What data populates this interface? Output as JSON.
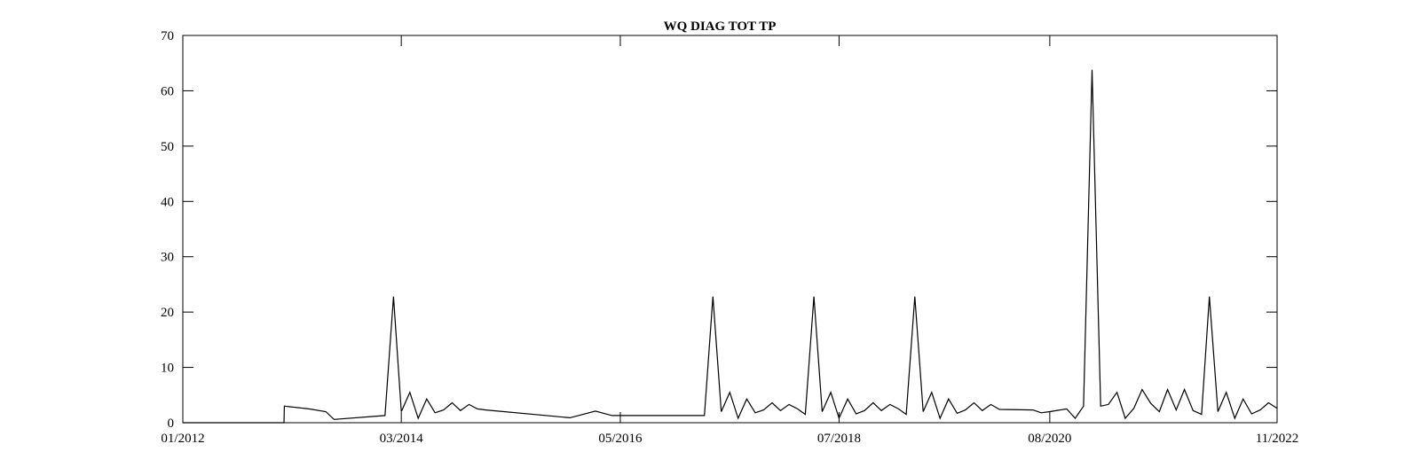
{
  "chart_data": {
    "type": "line",
    "title": "WQ DIAG TOT TP",
    "xlabel": "",
    "ylabel": "",
    "x_axis": {
      "type": "date",
      "range": [
        "2012-01-01",
        "2022-11-01"
      ],
      "ticks": [
        {
          "date": "2012-01-01",
          "label": "01/2012"
        },
        {
          "date": "2014-03-01",
          "label": "03/2014"
        },
        {
          "date": "2016-05-01",
          "label": "05/2016"
        },
        {
          "date": "2018-07-01",
          "label": "07/2018"
        },
        {
          "date": "2020-08-01",
          "label": "08/2020"
        },
        {
          "date": "2022-11-01",
          "label": "11/2022"
        }
      ]
    },
    "y_axis": {
      "range": [
        0,
        70
      ],
      "ticks": [
        0,
        10,
        20,
        30,
        40,
        50,
        60,
        70
      ]
    },
    "grid": false,
    "legend": "none",
    "line_color": "#000000",
    "series": [
      {
        "x": [
          "2012-01-01",
          "2013-01-01",
          "2013-01-02",
          "2013-04-01",
          "2013-06-01",
          "2013-07-01",
          "2014-01-01",
          "2014-02-01",
          "2014-03-01",
          "2014-04-01",
          "2014-05-01",
          "2014-06-01",
          "2014-07-01",
          "2014-08-01",
          "2014-09-01",
          "2014-10-01",
          "2014-11-01",
          "2014-12-01",
          "2015-01-01",
          "2015-11-01",
          "2016-02-01",
          "2016-04-01",
          "2017-03-01",
          "2017-04-01",
          "2017-05-01",
          "2017-06-01",
          "2017-07-01",
          "2017-08-01",
          "2017-09-01",
          "2017-10-01",
          "2017-11-01",
          "2017-12-01",
          "2018-01-01",
          "2018-02-01",
          "2018-03-01",
          "2018-04-01",
          "2018-05-01",
          "2018-06-01",
          "2018-07-01",
          "2018-08-01",
          "2018-09-01",
          "2018-10-01",
          "2018-11-01",
          "2018-12-01",
          "2019-01-01",
          "2019-02-01",
          "2019-03-01",
          "2019-04-01",
          "2019-05-01",
          "2019-06-01",
          "2019-07-01",
          "2019-08-01",
          "2019-09-01",
          "2019-10-01",
          "2019-11-01",
          "2019-12-01",
          "2020-01-01",
          "2020-02-01",
          "2020-06-01",
          "2020-07-01",
          "2020-08-01",
          "2020-10-01",
          "2020-11-01",
          "2020-12-01",
          "2021-01-01",
          "2021-02-01",
          "2021-03-01",
          "2021-04-01",
          "2021-05-01",
          "2021-06-01",
          "2021-07-01",
          "2021-08-01",
          "2021-09-01",
          "2021-10-01",
          "2021-11-01",
          "2021-12-01",
          "2022-01-01",
          "2022-02-01",
          "2022-03-01",
          "2022-04-01",
          "2022-05-01",
          "2022-06-01",
          "2022-07-01",
          "2022-08-01",
          "2022-09-01",
          "2022-10-01",
          "2022-11-01"
        ],
        "y": [
          0,
          0,
          3,
          2.5,
          2,
          0.6,
          1.3,
          22.8,
          2,
          5.5,
          0.8,
          4.3,
          1.8,
          2.3,
          3.6,
          2.2,
          3.3,
          2.5,
          2.3,
          0.9,
          2.1,
          1.3,
          1.3,
          22.8,
          2,
          5.5,
          0.8,
          4.3,
          1.8,
          2.3,
          3.6,
          2.2,
          3.3,
          2.5,
          1.5,
          22.8,
          2,
          5.5,
          0.8,
          4.3,
          1.6,
          2.2,
          3.6,
          2.2,
          3.3,
          2.5,
          1.5,
          22.8,
          2,
          5.5,
          0.8,
          4.3,
          1.7,
          2.3,
          3.6,
          2.2,
          3.3,
          2.4,
          2.3,
          1.8,
          2,
          2.5,
          0.8,
          3,
          63.8,
          3,
          3.3,
          5.5,
          0.8,
          2.6,
          6,
          3.5,
          2,
          6,
          2.3,
          6,
          2.2,
          1.5,
          22.8,
          2,
          5.5,
          0.8,
          4.3,
          1.6,
          2.3,
          3.6,
          2.6
        ]
      }
    ]
  }
}
